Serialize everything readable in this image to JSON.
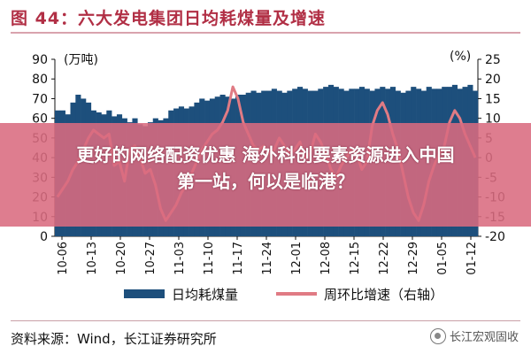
{
  "figure": {
    "title": "图 44：六大发电集团日均耗煤量及增速",
    "source": "资料来源：Wind，长江证券研究所",
    "watermark": "长江宏观固收"
  },
  "overlay": {
    "headline_line1": "更好的网络配资优惠 海外科创要素资源进入中国",
    "headline_line2": "第一站，何以是临港？"
  },
  "chart_data": {
    "type": "bar+line",
    "left_unit": "(万吨)",
    "right_unit": "(%)",
    "left_ylim": [
      0,
      90
    ],
    "right_ylim": [
      -20,
      25
    ],
    "left_ticks": [
      0,
      10,
      20,
      30,
      40,
      50,
      60,
      70,
      80,
      90
    ],
    "right_ticks": [
      -20,
      -15,
      -10,
      -5,
      0,
      5,
      10,
      15,
      20,
      25
    ],
    "x_tick_labels": [
      "10-06",
      "10-13",
      "10-20",
      "10-27",
      "11-03",
      "11-10",
      "11-17",
      "11-24",
      "12-01",
      "12-08",
      "12-15",
      "12-22",
      "12-29",
      "01-05",
      "01-12"
    ],
    "legend": {
      "bars": "日均耗煤量",
      "line": "周环比增速（右轴）"
    },
    "colors": {
      "bars": "#1d4f7c",
      "line": "#e07b84"
    },
    "bars": [
      64,
      64,
      62,
      68,
      72,
      70,
      68,
      64,
      63,
      62,
      64,
      61,
      62,
      60,
      58,
      60,
      57,
      56,
      58,
      60,
      59,
      60,
      64,
      65,
      66,
      65,
      66,
      68,
      70,
      69,
      70,
      71,
      72,
      71,
      70,
      72,
      72,
      73,
      74,
      73,
      74,
      74,
      75,
      74,
      73,
      74,
      75,
      76,
      75,
      74,
      74,
      75,
      76,
      77,
      76,
      75,
      74,
      75,
      75,
      76,
      75,
      74,
      75,
      76,
      75,
      76,
      74,
      73,
      74,
      76,
      75,
      74,
      76,
      75,
      75,
      76,
      76,
      77,
      75,
      76,
      77,
      74
    ],
    "growth": [
      -10,
      -8,
      -6,
      -3,
      -1,
      2,
      5,
      7,
      6,
      5,
      6,
      -2,
      -1,
      -6,
      2,
      3,
      0,
      -4,
      -3,
      -7,
      -13,
      -16,
      -14,
      -12,
      -9,
      -7,
      -4,
      -1,
      2,
      4,
      6,
      7,
      9,
      12,
      18,
      15,
      9,
      6,
      3,
      2,
      3,
      1,
      2,
      5,
      3,
      1,
      2,
      4,
      0,
      1,
      6,
      4,
      1,
      -3,
      -5,
      -2,
      0,
      2,
      1,
      -3,
      -1,
      8,
      12,
      14,
      11,
      6,
      2,
      -4,
      -10,
      -14,
      -16,
      -12,
      -6,
      -2,
      1,
      3,
      9,
      12,
      10,
      6,
      3,
      0
    ]
  }
}
